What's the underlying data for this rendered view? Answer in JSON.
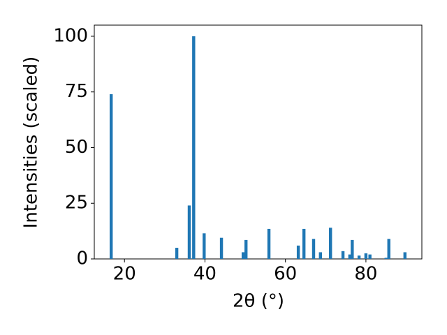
{
  "chart_data": {
    "type": "bar",
    "x_label": "2θ (°)",
    "y_label": "Intensities (scaled)",
    "x": [
      16.7,
      33.0,
      36.1,
      37.2,
      39.8,
      44.1,
      49.5,
      50.2,
      55.9,
      63.2,
      64.6,
      67.0,
      68.7,
      71.2,
      74.3,
      76.0,
      76.6,
      78.3,
      80.0,
      81.0,
      85.0,
      85.7,
      89.7
    ],
    "values": [
      74,
      5,
      24,
      100,
      11.5,
      9.5,
      3,
      8.5,
      13.5,
      6,
      13.5,
      9,
      3,
      14,
      3.5,
      2,
      8.5,
      1.5,
      2.5,
      2,
      0.5,
      9,
      3
    ],
    "color": "#1f77b4",
    "xlim": [
      12.5,
      93.9
    ],
    "ylim": [
      0,
      105
    ],
    "xticks": [
      20,
      40,
      60,
      80
    ],
    "yticks": [
      0,
      25,
      50,
      75,
      100
    ]
  }
}
